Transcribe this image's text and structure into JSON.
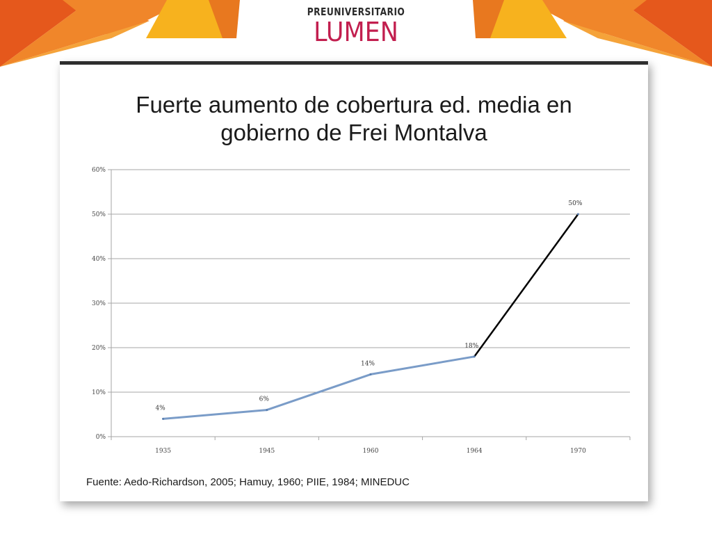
{
  "logo": {
    "top": "PREUNIVERSITARIO",
    "main": "LUMEN"
  },
  "slide": {
    "title_line1": "Fuerte aumento de cobertura ed. media en",
    "title_line2": "gobierno de Frei Montalva",
    "source": "Fuente: Aedo-Richardson, 2005; Hamuy, 1960; PIIE, 1984; MINEDUC"
  },
  "colors": {
    "banner_orange": "#f0862a",
    "banner_dark_orange": "#e5581c",
    "banner_yellow": "#f7b21e",
    "logo_red": "#c21f4f",
    "series_blue": "#7a9cc8",
    "series_black": "#000000",
    "grid": "#a6a6a6"
  },
  "chart_data": {
    "type": "line",
    "categories": [
      "1935",
      "1945",
      "1960",
      "1964",
      "1970"
    ],
    "series": [
      {
        "values": [
          4,
          6,
          14,
          18,
          50
        ]
      }
    ],
    "data_labels": [
      "4%",
      "6%",
      "14%",
      "18%",
      "50%"
    ],
    "y_ticks": [
      "0%",
      "10%",
      "20%",
      "30%",
      "40%",
      "50%",
      "60%"
    ],
    "ylim": [
      0,
      60
    ],
    "grid": true,
    "legend": "none",
    "segment_colors": [
      "blue",
      "blue",
      "blue",
      "black"
    ]
  }
}
